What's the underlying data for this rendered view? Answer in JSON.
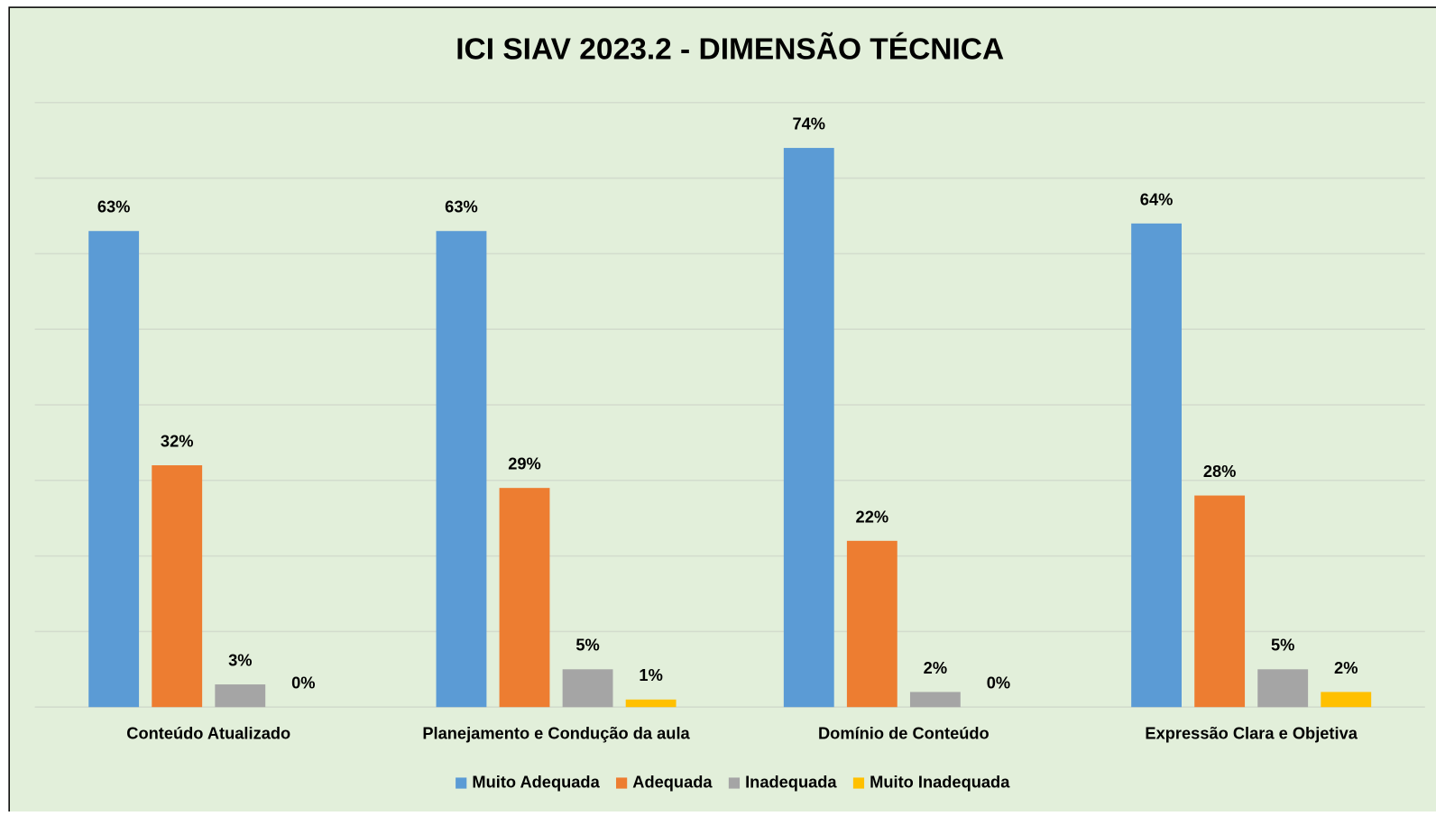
{
  "chart_data": {
    "type": "bar",
    "title": "ICI SIAV 2023.2 - DIMENSÃO TÉCNICA",
    "categories": [
      "Conteúdo Atualizado",
      "Planejamento e Condução da aula",
      "Domínio de Conteúdo",
      "Expressão Clara e Objetiva"
    ],
    "series": [
      {
        "name": "Muito Adequada",
        "color": "#5b9bd5",
        "values": [
          63,
          63,
          74,
          64
        ],
        "value_labels": [
          "63%",
          "63%",
          "74%",
          "64%"
        ]
      },
      {
        "name": "Adequada",
        "color": "#ed7d31",
        "values": [
          32,
          29,
          22,
          28
        ],
        "value_labels": [
          "32%",
          "29%",
          "22%",
          "28%"
        ]
      },
      {
        "name": "Inadequada",
        "color": "#a5a5a5",
        "values": [
          3,
          5,
          2,
          5
        ],
        "value_labels": [
          "3%",
          "5%",
          "2%",
          "5%"
        ]
      },
      {
        "name": "Muito Inadequada",
        "color": "#ffc000",
        "values": [
          0,
          1,
          0,
          2
        ],
        "value_labels": [
          "0%",
          "1%",
          "0%",
          "2%"
        ]
      }
    ],
    "ylim": [
      0,
      80
    ],
    "yticks": [
      0,
      10,
      20,
      30,
      40,
      50,
      60,
      70,
      80
    ],
    "grid": true,
    "legend": "bottom"
  }
}
